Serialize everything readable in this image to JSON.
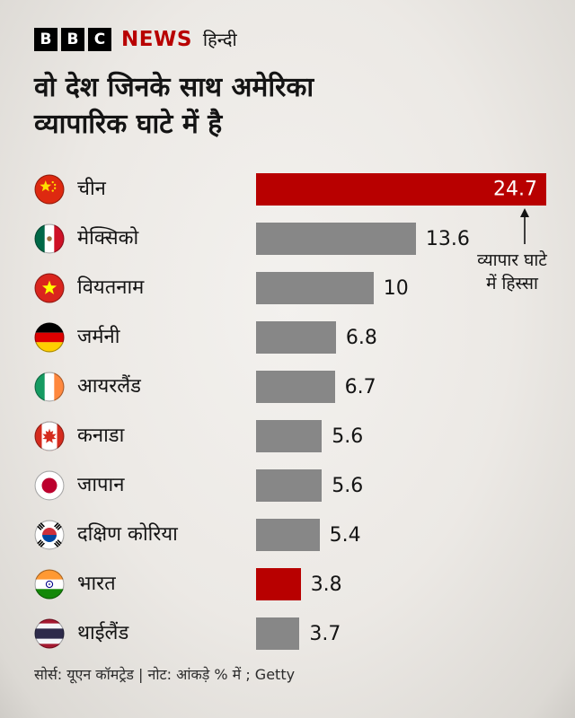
{
  "header": {
    "logo_letters": [
      "B",
      "B",
      "C"
    ],
    "news_label": "NEWS",
    "language_label": "हिन्दी"
  },
  "title_lines": [
    "वो देश जिनके साथ अमेरिका",
    "व्यापारिक घाटे में है"
  ],
  "chart_data": {
    "type": "bar",
    "orientation": "horizontal",
    "title": "वो देश जिनके साथ अमेरिका व्यापारिक घाटे में है",
    "unit": "%",
    "categories": [
      "चीन",
      "मेक्सिको",
      "वियतनाम",
      "जर्मनी",
      "आयरलैंड",
      "कनाडा",
      "जापान",
      "दक्षिण कोरिया",
      "भारत",
      "थाईलैंड"
    ],
    "values": [
      24.7,
      13.6,
      10,
      6.8,
      6.7,
      5.6,
      5.6,
      5.4,
      3.8,
      3.7
    ],
    "value_labels": [
      "24.7",
      "13.6",
      "10",
      "6.8",
      "6.7",
      "5.6",
      "5.6",
      "5.4",
      "3.8",
      "3.7"
    ],
    "highlight_indices": [
      0,
      8
    ],
    "bar_color": "#878787",
    "highlight_color": "#b80000",
    "xlim": [
      0,
      24.7
    ],
    "grid": false,
    "legend": "none",
    "annotation": "व्यापार घाटे में हिस्सा"
  },
  "rows": [
    {
      "country": "चीन",
      "value_label": "24.7"
    },
    {
      "country": "मेक्सिको",
      "value_label": "13.6"
    },
    {
      "country": "वियतनाम",
      "value_label": "10"
    },
    {
      "country": "जर्मनी",
      "value_label": "6.8"
    },
    {
      "country": "आयरलैंड",
      "value_label": "6.7"
    },
    {
      "country": "कनाडा",
      "value_label": "5.6"
    },
    {
      "country": "जापान",
      "value_label": "5.6"
    },
    {
      "country": "दक्षिण कोरिया",
      "value_label": "5.4"
    },
    {
      "country": "भारत",
      "value_label": "3.8"
    },
    {
      "country": "थाईलैंड",
      "value_label": "3.7"
    }
  ],
  "annotation": {
    "text": "व्यापार घाटे में हिस्सा"
  },
  "footer": {
    "text": "सोर्स: यूएन कॉमट्रेड | नोट: आंकड़े % में ; Getty"
  }
}
